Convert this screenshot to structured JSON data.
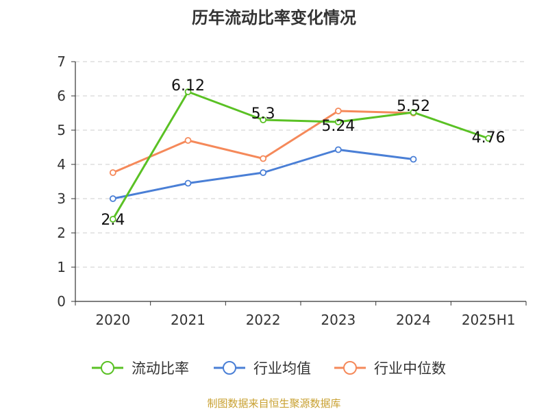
{
  "chart_data": {
    "type": "line",
    "title": "历年流动比率变化情况",
    "categories": [
      "2020",
      "2021",
      "2022",
      "2023",
      "2024",
      "2025H1"
    ],
    "ylim": [
      0,
      7
    ],
    "yticks": [
      0,
      1,
      2,
      3,
      4,
      5,
      6,
      7
    ],
    "grid": true,
    "legend_position": "bottom",
    "series": [
      {
        "name": "流动比率",
        "color": "#5ac124",
        "values": [
          2.4,
          6.12,
          5.3,
          5.24,
          5.52,
          4.76
        ],
        "labels": [
          "2.4",
          "6.12",
          "5.3",
          "5.24",
          "5.52",
          "4.76"
        ]
      },
      {
        "name": "行业均值",
        "color": "#4a7fd6",
        "values": [
          3.0,
          3.45,
          3.76,
          4.43,
          4.15,
          null
        ]
      },
      {
        "name": "行业中位数",
        "color": "#f5895a",
        "values": [
          3.76,
          4.7,
          4.17,
          5.56,
          5.5,
          null
        ]
      }
    ]
  },
  "source": "制图数据来自恒生聚源数据库"
}
